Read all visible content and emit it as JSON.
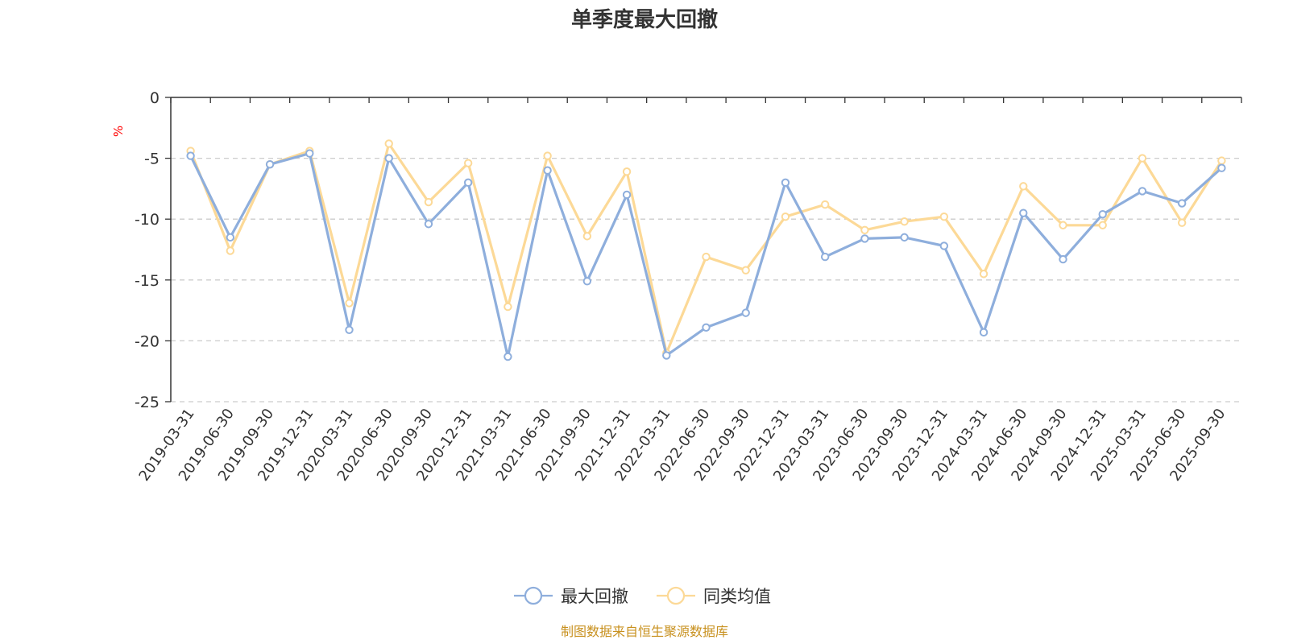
{
  "chart_data": {
    "type": "line",
    "title": "单季度最大回撤",
    "ylabel": "%",
    "ylim": [
      -25,
      0
    ],
    "yticks": [
      0,
      -5,
      -10,
      -15,
      -20,
      -25
    ],
    "grid": true,
    "legend_position": "bottom",
    "categories": [
      "2019-03-31",
      "2019-06-30",
      "2019-09-30",
      "2019-12-31",
      "2020-03-31",
      "2020-06-30",
      "2020-09-30",
      "2020-12-31",
      "2021-03-31",
      "2021-06-30",
      "2021-09-30",
      "2021-12-31",
      "2022-03-31",
      "2022-06-30",
      "2022-09-30",
      "2022-12-31",
      "2023-03-31",
      "2023-06-30",
      "2023-09-30",
      "2023-12-31",
      "2024-03-31",
      "2024-06-30",
      "2024-09-30",
      "2024-12-31",
      "2025-03-31",
      "2025-06-30",
      "2025-09-30"
    ],
    "series": [
      {
        "name": "最大回撤",
        "color": "#8eaedc",
        "values": [
          -4.8,
          -11.5,
          -5.5,
          -4.6,
          -19.1,
          -5.0,
          -10.4,
          -7.0,
          -21.3,
          -6.0,
          -15.1,
          -8.0,
          -21.2,
          -18.9,
          -17.7,
          -7.0,
          -13.1,
          -11.6,
          -11.5,
          -12.2,
          -19.3,
          -9.5,
          -13.3,
          -9.6,
          -7.7,
          -8.7,
          -5.8
        ]
      },
      {
        "name": "同类均值",
        "color": "#fcd997",
        "values": [
          -4.4,
          -12.6,
          -5.5,
          -4.4,
          -16.9,
          -3.8,
          -8.6,
          -5.4,
          -17.2,
          -4.8,
          -11.4,
          -6.1,
          -21.0,
          -13.1,
          -14.2,
          -9.8,
          -8.8,
          -10.9,
          -10.2,
          -9.8,
          -14.5,
          -7.3,
          -10.5,
          -10.5,
          -5.0,
          -10.3,
          -5.2
        ]
      }
    ]
  },
  "colors": {
    "unit_label": "#ff0000",
    "source_text": "#c8911f",
    "axis": "#333333",
    "grid": "#cccccc"
  },
  "footer": {
    "source": "制图数据来自恒生聚源数据库"
  }
}
